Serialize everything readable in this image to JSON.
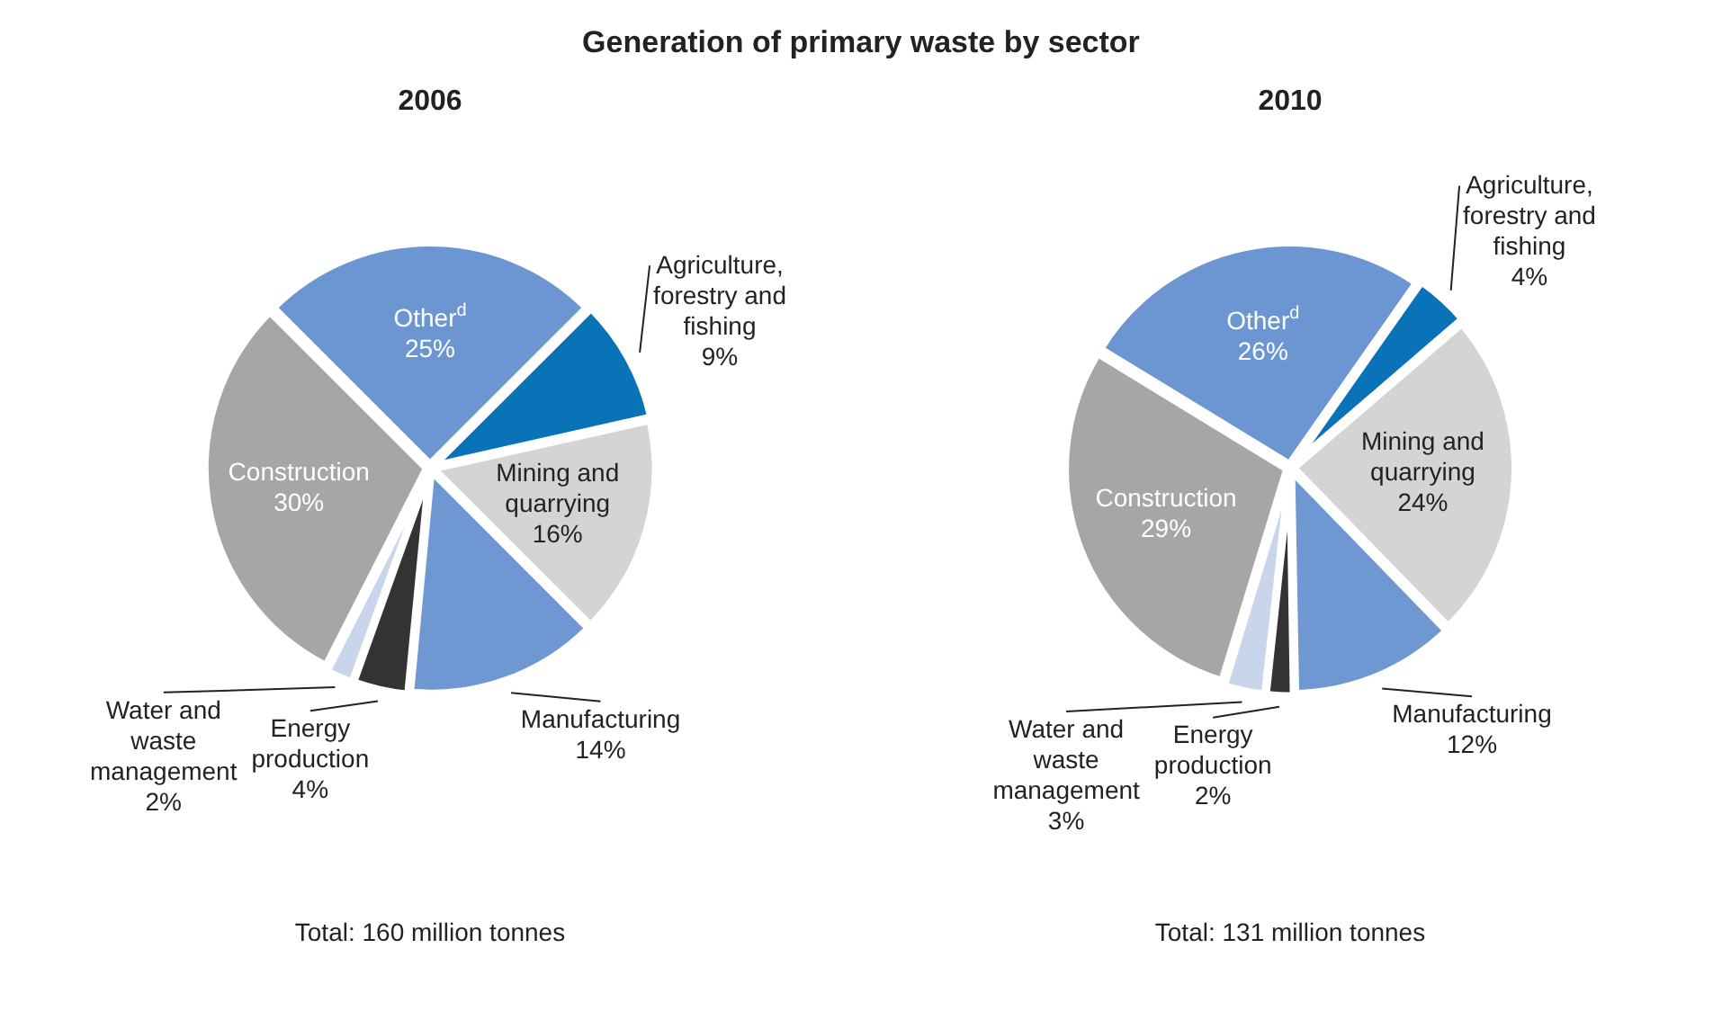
{
  "chart_data": [
    {
      "type": "pie",
      "title": "Generation of primary waste by sector",
      "subtitle": "2006",
      "categories": [
        "Agriculture, forestry and fishing",
        "Mining and quarrying",
        "Manufacturing",
        "Energy production",
        "Water and waste management",
        "Construction",
        "Other$^{d}$"
      ],
      "values": [
        9,
        16,
        14,
        4,
        2,
        30,
        25
      ],
      "value_labels": [
        "9%",
        "16%",
        "14%",
        "4%",
        "2%",
        "30%",
        "25%"
      ],
      "colors": [
        "#0a72b7",
        "#d4d4d5",
        "#6f98d3",
        "#333333",
        "#c8d5ea",
        "#a6a6a8",
        "#6c96d1"
      ],
      "legend": false,
      "annotations": [
        "Total: 160 million tonnes"
      ]
    },
    {
      "type": "pie",
      "subtitle": "2010",
      "categories": [
        "Agriculture, forestry and fishing",
        "Mining and quarrying",
        "Manufacturing",
        "Energy production",
        "Water and waste management",
        "Construction",
        "Other$^{d}$"
      ],
      "values": [
        4,
        24,
        12,
        2,
        3,
        29,
        26
      ],
      "value_labels": [
        "4%",
        "24%",
        "12%",
        "2%",
        "3%",
        "29%",
        "26%"
      ],
      "colors": [
        "#0a72b7",
        "#d4d4d5",
        "#6f98d3",
        "#333333",
        "#c8d5ea",
        "#a6a6a8",
        "#6c96d1"
      ],
      "legend": false,
      "annotations": [
        "Total: 131 million tonnes"
      ]
    }
  ]
}
